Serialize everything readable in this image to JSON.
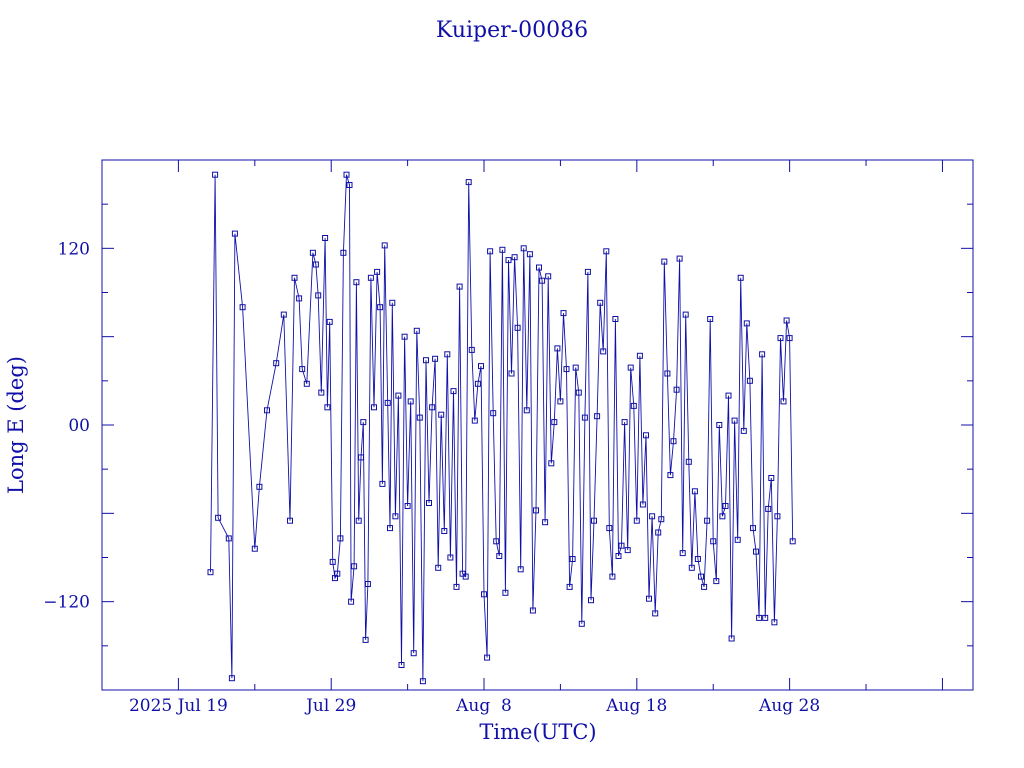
{
  "chart_data": {
    "type": "scatter",
    "title": "Kuiper-00086",
    "xlabel": "Time(UTC)",
    "ylabel": "Long E (deg)",
    "xlim": [
      -1.0,
      56.0
    ],
    "ylim": [
      -180,
      180
    ],
    "x_units": "days since 2025 Jul 15 00:00 UTC",
    "x_tick_labels": [
      {
        "x": 4.0,
        "label": "2025 Jul 19"
      },
      {
        "x": 14.0,
        "label": "Jul 29"
      },
      {
        "x": 24.0,
        "label": "Aug  8"
      },
      {
        "x": 34.0,
        "label": "Aug 18"
      },
      {
        "x": 44.0,
        "label": "Aug 28"
      }
    ],
    "y_ticks": [
      -120,
      0,
      120
    ],
    "y_tick_labels": [
      "−120",
      "00",
      "120"
    ],
    "grid": false,
    "color": "#1010a8",
    "series": [
      {
        "name": "",
        "marker": "square",
        "line": "connected",
        "x": [
          6.1,
          6.4,
          6.6,
          7.3,
          7.5,
          7.7,
          8.2,
          9.0,
          9.3,
          9.8,
          10.4,
          10.9,
          11.3,
          11.6,
          11.9,
          12.1,
          12.4,
          12.8,
          13.0,
          13.15,
          13.35,
          13.6,
          13.75,
          13.9,
          14.1,
          14.25,
          14.4,
          14.6,
          14.8,
          15.0,
          15.2,
          15.3,
          15.5,
          15.65,
          15.8,
          15.95,
          16.1,
          16.25,
          16.4,
          16.6,
          16.8,
          17.0,
          17.2,
          17.35,
          17.5,
          17.7,
          17.85,
          18.0,
          18.2,
          18.4,
          18.6,
          18.8,
          19.0,
          19.2,
          19.4,
          19.6,
          19.8,
          20.0,
          20.2,
          20.4,
          20.6,
          20.8,
          21.0,
          21.2,
          21.4,
          21.6,
          21.8,
          22.0,
          22.2,
          22.4,
          22.6,
          22.8,
          23.0,
          23.2,
          23.4,
          23.6,
          23.8,
          24.0,
          24.2,
          24.4,
          24.6,
          24.8,
          25.0,
          25.2,
          25.4,
          25.6,
          25.8,
          26.0,
          26.2,
          26.4,
          26.6,
          26.8,
          27.0,
          27.2,
          27.4,
          27.6,
          27.8,
          28.0,
          28.2,
          28.4,
          28.6,
          28.8,
          29.0,
          29.2,
          29.4,
          29.6,
          29.8,
          30.0,
          30.2,
          30.4,
          30.6,
          30.8,
          31.0,
          31.2,
          31.4,
          31.6,
          31.8,
          32.0,
          32.2,
          32.4,
          32.6,
          32.8,
          33.0,
          33.2,
          33.4,
          33.6,
          33.8,
          34.0,
          34.2,
          34.4,
          34.6,
          34.8,
          35.0,
          35.2,
          35.4,
          35.6,
          35.8,
          36.0,
          36.2,
          36.4,
          36.6,
          36.8,
          37.0,
          37.2,
          37.4,
          37.6,
          37.8,
          38.0,
          38.2,
          38.4,
          38.6,
          38.8,
          39.0,
          39.2,
          39.4,
          39.6,
          39.8,
          40.0,
          40.2,
          40.4,
          40.6,
          40.8,
          41.0,
          41.2,
          41.4,
          41.6,
          41.8,
          42.0,
          42.2,
          42.4,
          42.6,
          42.8,
          43.0,
          43.2,
          43.4,
          43.6,
          43.8,
          44.0,
          44.2
        ],
        "y": [
          -100,
          170,
          -63,
          -77,
          -172,
          130,
          80,
          -84,
          -42,
          10,
          42,
          75,
          -65,
          100,
          86,
          38,
          28,
          117,
          109,
          88,
          22,
          127,
          12,
          70,
          -93,
          -104,
          -101,
          -77,
          117,
          170,
          163,
          -120,
          -96,
          97,
          -65,
          -22,
          2,
          -146,
          -108,
          100,
          12,
          104,
          80,
          -40,
          122,
          15,
          -70,
          83,
          -62,
          20,
          -163,
          60,
          -55,
          16,
          -155,
          64,
          5,
          -174,
          44,
          -53,
          12,
          45,
          -97,
          7,
          -72,
          48,
          -90,
          23,
          -110,
          94,
          -101,
          -103,
          165,
          51,
          3,
          28,
          40,
          -115,
          -158,
          118,
          8,
          -79,
          -89,
          119,
          -114,
          112,
          35,
          114,
          66,
          -98,
          120,
          10,
          116,
          -126,
          -58,
          107,
          98,
          -66,
          101,
          -26,
          2,
          52,
          16,
          76,
          38,
          -110,
          -91,
          39,
          22,
          -135,
          5,
          104,
          -119,
          -65,
          6,
          83,
          50,
          118,
          -70,
          -103,
          72,
          -89,
          -82,
          2,
          -85,
          39,
          13,
          -65,
          47,
          -54,
          -7,
          -118,
          -62,
          -128,
          -73,
          -64,
          111,
          35,
          -34,
          -11,
          24,
          113,
          -87,
          75,
          -25,
          -97,
          -45,
          -91,
          -103,
          -110,
          -65,
          72,
          -79,
          -106,
          0,
          -62,
          -55,
          20,
          -145,
          3,
          -78,
          100,
          -4,
          69,
          30,
          -70,
          -86,
          -131,
          48,
          -131,
          -57,
          -36,
          -134,
          -62,
          59,
          16,
          71,
          59,
          -79
        ]
      }
    ]
  }
}
